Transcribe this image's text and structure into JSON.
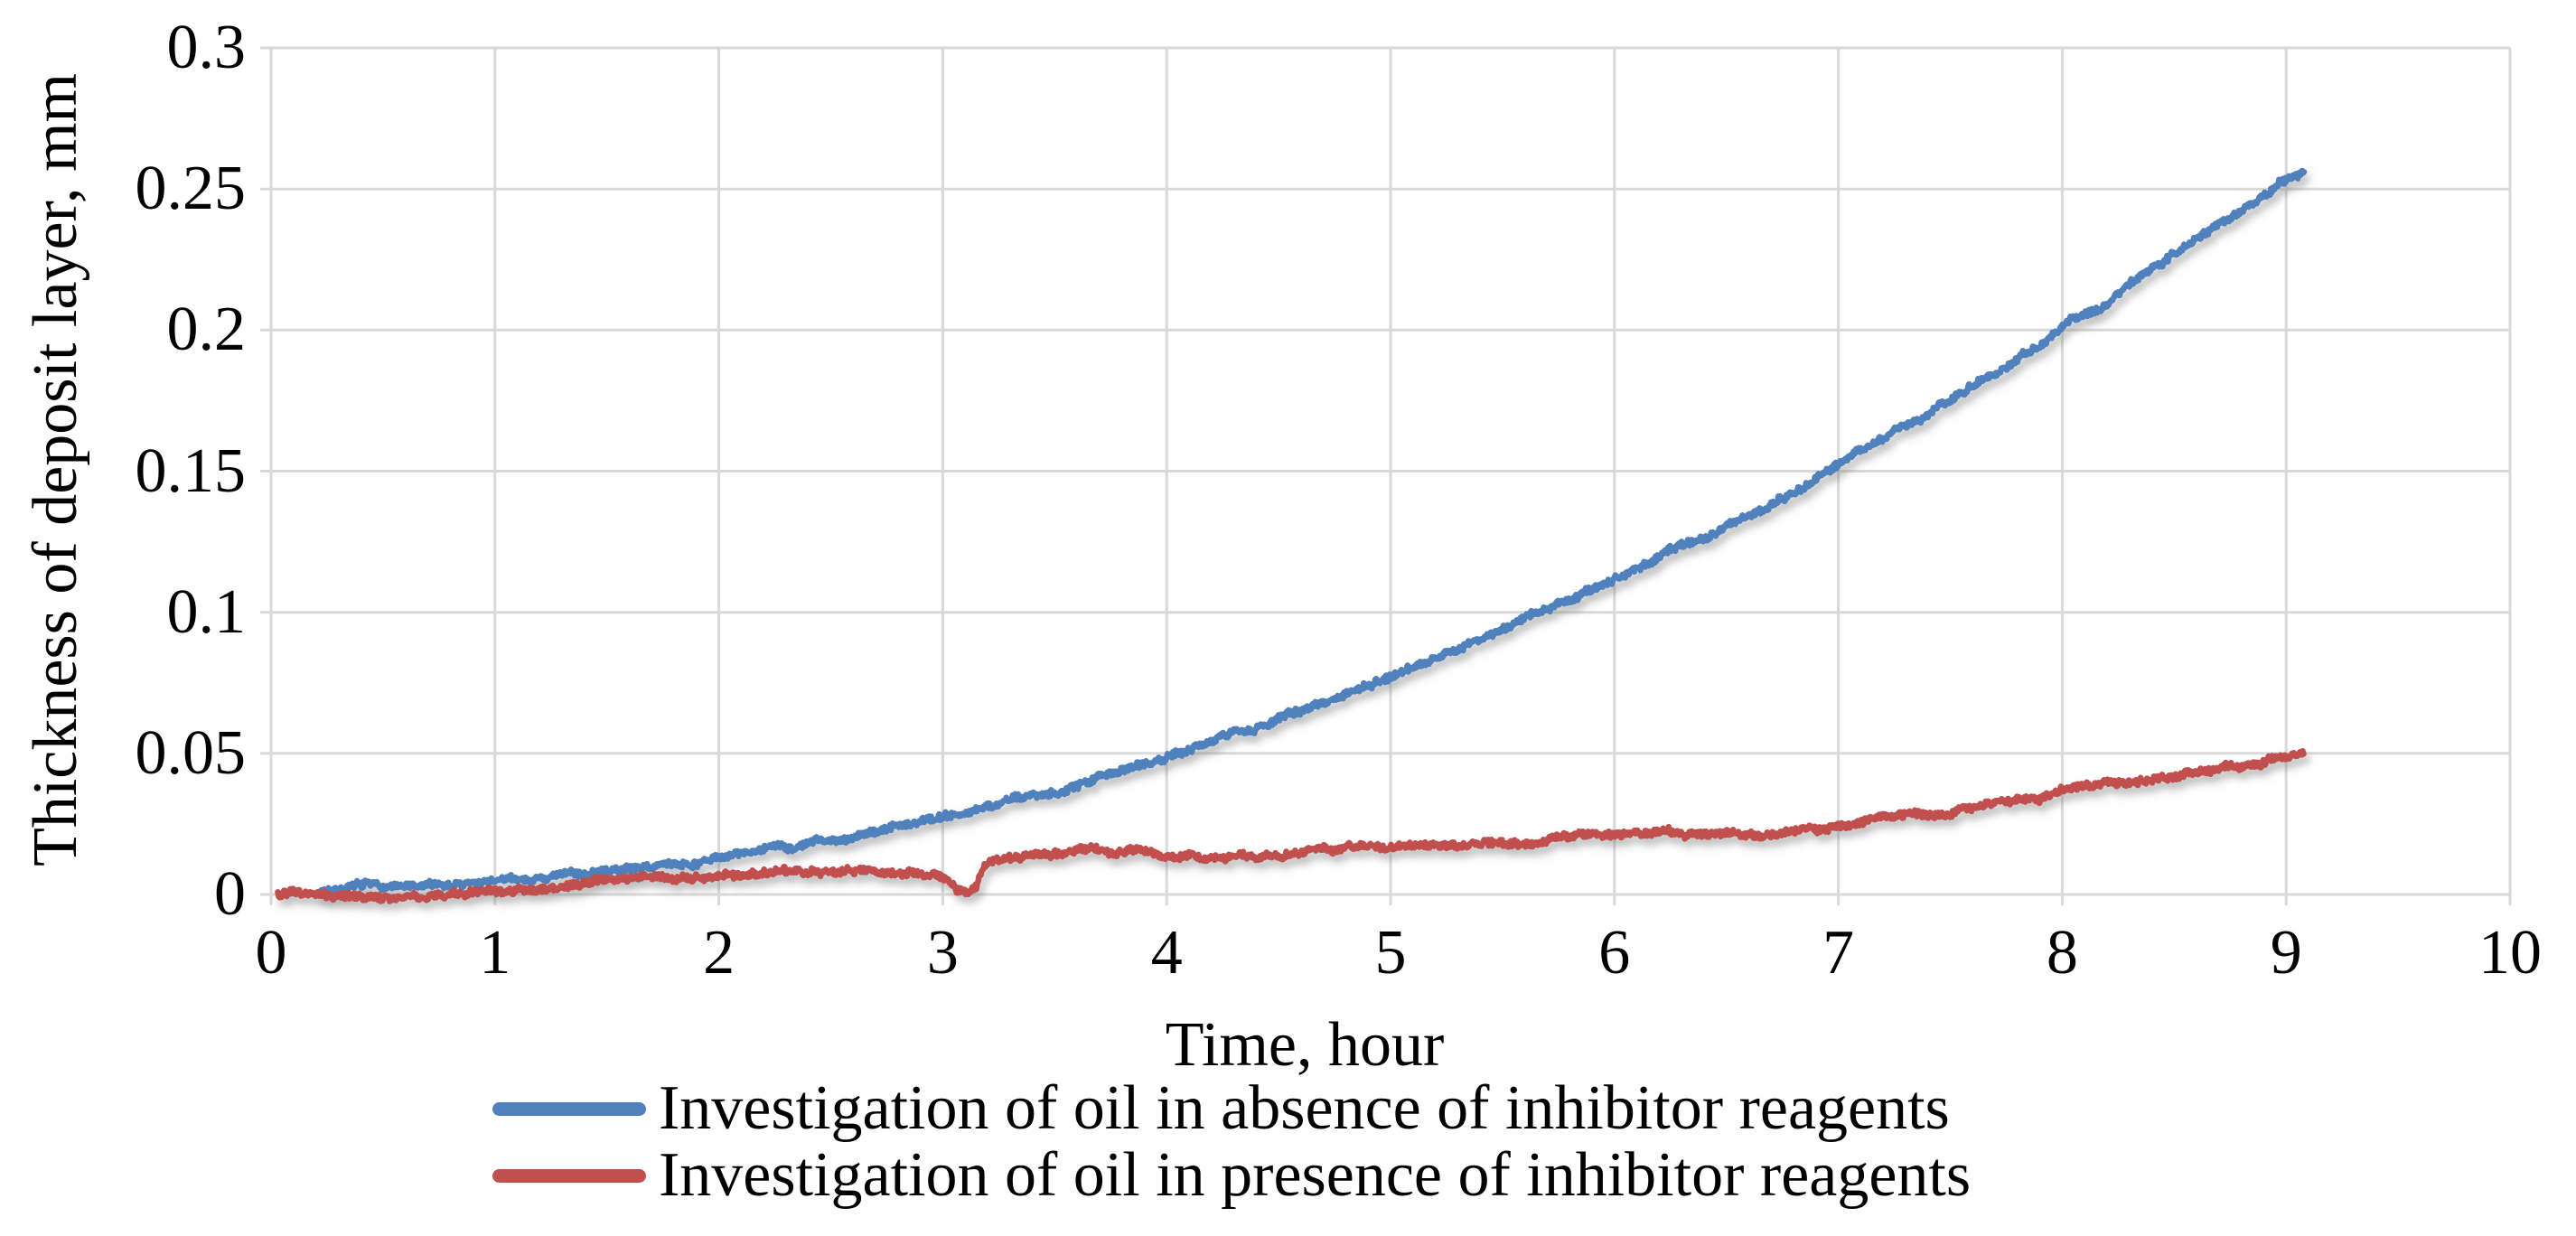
{
  "chart_data": {
    "type": "line",
    "title": "",
    "xlabel": "Time, hour",
    "ylabel": "Thickness of deposit layer, mm",
    "xlim": [
      0,
      10
    ],
    "ylim": [
      0,
      0.3
    ],
    "x_ticks": [
      "0",
      "1",
      "2",
      "3",
      "4",
      "5",
      "6",
      "7",
      "8",
      "9",
      "10"
    ],
    "y_ticks": [
      "0",
      "0.05",
      "0.1",
      "0.15",
      "0.2",
      "0.25",
      "0.3"
    ],
    "grid": true,
    "gridline_color": "#d9d9d9",
    "legend_position": "bottom-left",
    "series": [
      {
        "name": "Investigation of oil in absence of inhibitor reagents",
        "color": "#4F81BD",
        "points": [
          [
            0.22,
            0.001
          ],
          [
            0.35,
            0.0035
          ],
          [
            0.5,
            0.003
          ],
          [
            0.65,
            0.0025
          ],
          [
            0.8,
            0.003
          ],
          [
            1.0,
            0.0045
          ],
          [
            1.2,
            0.006
          ],
          [
            1.4,
            0.0075
          ],
          [
            1.6,
            0.009
          ],
          [
            1.8,
            0.011
          ],
          [
            2.0,
            0.013
          ],
          [
            2.2,
            0.0155
          ],
          [
            2.4,
            0.018
          ],
          [
            2.6,
            0.021
          ],
          [
            2.8,
            0.0245
          ],
          [
            3.0,
            0.028
          ],
          [
            3.2,
            0.0315
          ],
          [
            3.4,
            0.035
          ],
          [
            3.6,
            0.039
          ],
          [
            3.8,
            0.0445
          ],
          [
            4.0,
            0.05
          ],
          [
            4.2,
            0.055
          ],
          [
            4.4,
            0.0595
          ],
          [
            4.6,
            0.065
          ],
          [
            4.8,
            0.0715
          ],
          [
            5.0,
            0.078
          ],
          [
            5.2,
            0.0845
          ],
          [
            5.4,
            0.091
          ],
          [
            5.6,
            0.0975
          ],
          [
            5.8,
            0.104
          ],
          [
            6.0,
            0.112
          ],
          [
            6.2,
            0.12
          ],
          [
            6.4,
            0.1275
          ],
          [
            6.6,
            0.135
          ],
          [
            6.8,
            0.1435
          ],
          [
            7.0,
            0.152
          ],
          [
            7.2,
            0.161
          ],
          [
            7.4,
            0.1705
          ],
          [
            7.6,
            0.18
          ],
          [
            7.8,
            0.19
          ],
          [
            8.0,
            0.2
          ],
          [
            8.2,
            0.2105
          ],
          [
            8.4,
            0.2215
          ],
          [
            8.6,
            0.2325
          ],
          [
            8.8,
            0.2435
          ],
          [
            9.0,
            0.2525
          ],
          [
            9.08,
            0.256
          ]
        ]
      },
      {
        "name": "Investigation of oil in presence of inhibitor reagents",
        "color": "#C0504D",
        "points": [
          [
            0.03,
            -0.0005
          ],
          [
            0.3,
            0.0
          ],
          [
            0.6,
            0.0
          ],
          [
            0.9,
            0.0005
          ],
          [
            1.0,
            0.001
          ],
          [
            1.15,
            0.0025
          ],
          [
            1.3,
            0.004
          ],
          [
            1.45,
            0.005
          ],
          [
            1.6,
            0.005
          ],
          [
            1.8,
            0.0055
          ],
          [
            2.0,
            0.006
          ],
          [
            2.2,
            0.007
          ],
          [
            2.4,
            0.0075
          ],
          [
            2.6,
            0.008
          ],
          [
            2.8,
            0.0075
          ],
          [
            2.95,
            0.007
          ],
          [
            3.02,
            0.005
          ],
          [
            3.06,
            0.001
          ],
          [
            3.12,
            0.0005
          ],
          [
            3.15,
            0.002
          ],
          [
            3.18,
            0.009
          ],
          [
            3.22,
            0.012
          ],
          [
            3.35,
            0.013
          ],
          [
            3.5,
            0.014
          ],
          [
            3.65,
            0.015
          ],
          [
            3.8,
            0.016
          ],
          [
            3.88,
            0.0175
          ],
          [
            3.93,
            0.016
          ],
          [
            3.97,
            0.0135
          ],
          [
            4.1,
            0.013
          ],
          [
            4.3,
            0.0135
          ],
          [
            4.5,
            0.0145
          ],
          [
            4.7,
            0.0155
          ],
          [
            4.9,
            0.016
          ],
          [
            5.1,
            0.0175
          ],
          [
            5.3,
            0.018
          ],
          [
            5.5,
            0.019
          ],
          [
            5.7,
            0.0195
          ],
          [
            5.9,
            0.02
          ],
          [
            6.1,
            0.0205
          ],
          [
            6.3,
            0.021
          ],
          [
            6.45,
            0.0225
          ],
          [
            6.55,
            0.022
          ],
          [
            6.7,
            0.0225
          ],
          [
            6.9,
            0.023
          ],
          [
            7.1,
            0.025
          ],
          [
            7.3,
            0.027
          ],
          [
            7.5,
            0.029
          ],
          [
            7.7,
            0.031
          ],
          [
            7.9,
            0.034
          ],
          [
            8.0,
            0.0375
          ],
          [
            8.1,
            0.0385
          ],
          [
            8.3,
            0.04
          ],
          [
            8.5,
            0.042
          ],
          [
            8.7,
            0.044
          ],
          [
            8.9,
            0.047
          ],
          [
            9.0,
            0.048
          ],
          [
            9.08,
            0.049
          ]
        ]
      }
    ]
  }
}
